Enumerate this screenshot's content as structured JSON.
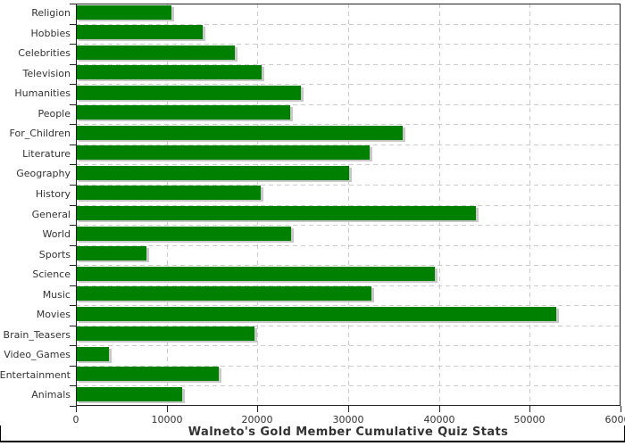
{
  "chart_data": {
    "type": "bar",
    "orientation": "horizontal",
    "title": "Walneto's Gold Member Cumulative Quiz Stats",
    "categories": [
      "Religion",
      "Hobbies",
      "Celebrities",
      "Television",
      "Humanities",
      "People",
      "For_Children",
      "Literature",
      "Geography",
      "History",
      "General",
      "World",
      "Sports",
      "Science",
      "Music",
      "Movies",
      "Brain_Teasers",
      "Video_Games",
      "Entertainment",
      "Animals"
    ],
    "values": [
      10500,
      14000,
      17500,
      20500,
      24800,
      23600,
      36000,
      32400,
      30100,
      20400,
      44100,
      23700,
      7800,
      39500,
      32600,
      52900,
      19700,
      3600,
      15700,
      11700
    ],
    "xlabel": "",
    "ylabel": "",
    "xlim": [
      0,
      60000
    ],
    "x_ticks": [
      0,
      10000,
      20000,
      30000,
      40000,
      50000,
      60000
    ],
    "x_tick_labels": [
      "0",
      "10000",
      "20000",
      "30000",
      "40000",
      "50000",
      "60000"
    ],
    "legend": "none",
    "grid": "dashed-vertical-and-row-separators",
    "colors": {
      "bar": "#008000",
      "bar_shadow": "#c8c8c8",
      "grid": "#cccccc",
      "frame": "#222222",
      "tick_label": "#333333",
      "title": "#333333",
      "bottom_rule": "#000000"
    }
  },
  "layout_note": "title rendered below x-axis"
}
